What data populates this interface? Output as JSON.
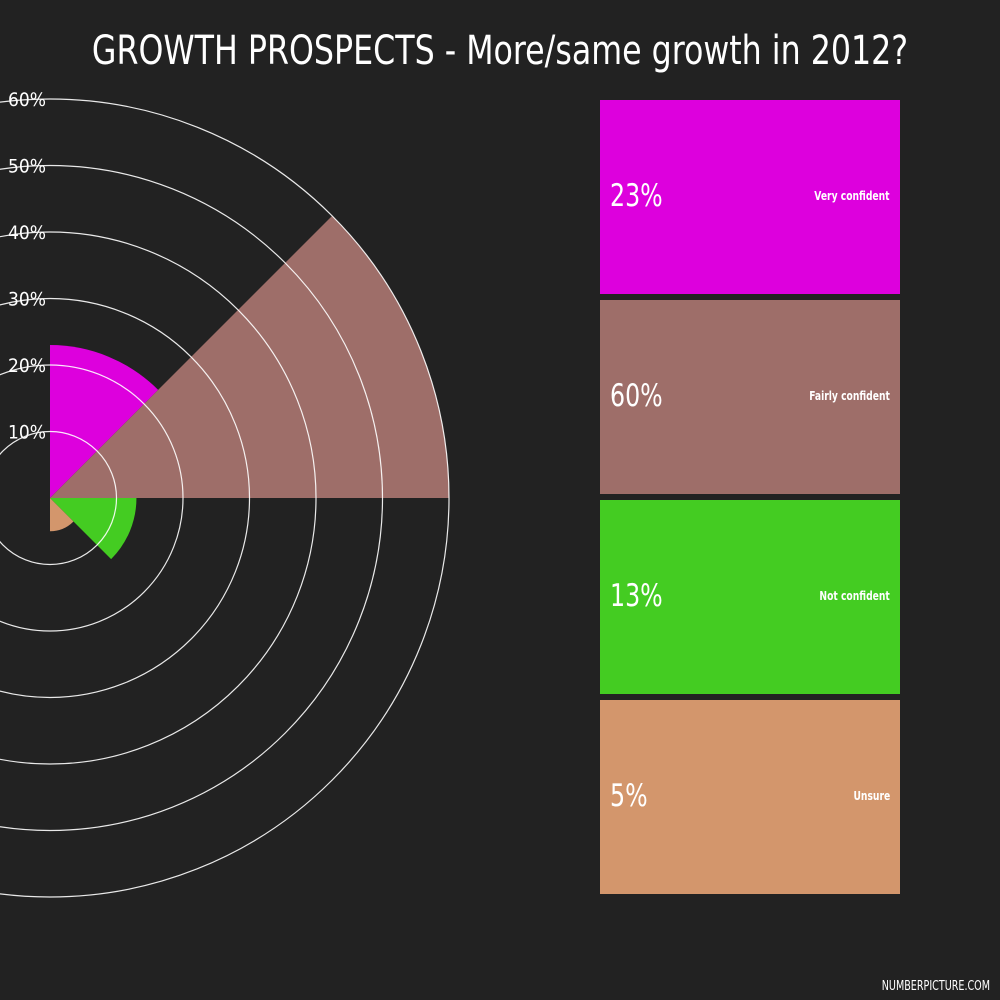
{
  "title": "GROWTH PROSPECTS - More/same growth in 2012?",
  "footer": "NUMBERPICTURE.COM",
  "chart_data": {
    "type": "pie",
    "subtype": "polar-area",
    "title": "GROWTH PROSPECTS - More/same growth in 2012?",
    "radial_axis": {
      "ticks": [
        "10%",
        "20%",
        "30%",
        "40%",
        "50%",
        "60%"
      ],
      "range": [
        0,
        60
      ],
      "grid": true
    },
    "categories": [
      "Very confident",
      "Fairly confident",
      "Not confident",
      "Unsure"
    ],
    "values": [
      23,
      60,
      13,
      5
    ],
    "value_labels": [
      "23%",
      "60%",
      "13%",
      "5%"
    ],
    "colors": [
      "#dd00dd",
      "#9e6e69",
      "#44cc22",
      "#d3966c"
    ],
    "legend_position": "right"
  }
}
